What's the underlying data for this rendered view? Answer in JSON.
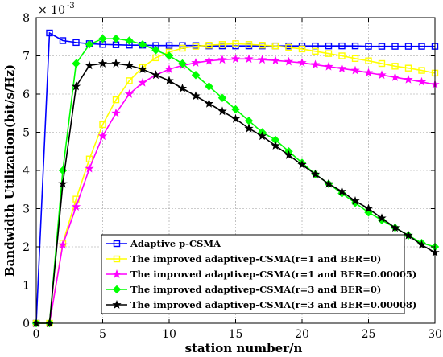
{
  "chart_data": {
    "type": "line",
    "title": "",
    "xlabel": "station number/n",
    "ylabel": "Bandwidth Utilization(bit/s/Hz)",
    "y_scale_base": "× 10",
    "y_scale_exponent": "-3",
    "xlim": [
      0,
      30
    ],
    "ylim": [
      0,
      8
    ],
    "xticks": [
      0,
      5,
      10,
      15,
      20,
      25,
      30
    ],
    "yticks": [
      0,
      1,
      2,
      3,
      4,
      5,
      6,
      7,
      8
    ],
    "grid": true,
    "legend_position": "lower-left",
    "x": [
      0,
      1,
      2,
      3,
      4,
      5,
      6,
      7,
      8,
      9,
      10,
      11,
      12,
      13,
      14,
      15,
      16,
      17,
      18,
      19,
      20,
      21,
      22,
      23,
      24,
      25,
      26,
      27,
      28,
      29,
      30
    ],
    "series": [
      {
        "name": "Adaptive p-CSMA",
        "color": "#0000ff",
        "marker": "square",
        "values": [
          0,
          7.6,
          7.4,
          7.35,
          7.32,
          7.3,
          7.29,
          7.28,
          7.28,
          7.27,
          7.27,
          7.27,
          7.27,
          7.26,
          7.26,
          7.26,
          7.26,
          7.26,
          7.26,
          7.26,
          7.26,
          7.26,
          7.26,
          7.26,
          7.26,
          7.25,
          7.25,
          7.25,
          7.25,
          7.25,
          7.25
        ]
      },
      {
        "name": "The improved adaptivep-CSMA(r=1 and BER=0)",
        "color": "#ffff00",
        "marker": "square",
        "values": [
          0,
          0,
          2.1,
          3.25,
          4.3,
          5.2,
          5.85,
          6.35,
          6.7,
          6.95,
          7.1,
          7.2,
          7.25,
          7.28,
          7.3,
          7.32,
          7.3,
          7.28,
          7.26,
          7.22,
          7.18,
          7.12,
          7.06,
          7.0,
          6.93,
          6.87,
          6.8,
          6.73,
          6.68,
          6.62,
          6.55
        ]
      },
      {
        "name": "The improved adaptivep-CSMA(r=1 and BER=0.00005)",
        "color": "#ff00ff",
        "marker": "star",
        "values": [
          0,
          0,
          2.05,
          3.05,
          4.05,
          4.9,
          5.5,
          6.0,
          6.3,
          6.5,
          6.65,
          6.75,
          6.82,
          6.87,
          6.9,
          6.92,
          6.92,
          6.9,
          6.88,
          6.85,
          6.82,
          6.77,
          6.72,
          6.67,
          6.62,
          6.56,
          6.5,
          6.44,
          6.38,
          6.32,
          6.25
        ]
      },
      {
        "name": "The improved adaptivep-CSMA(r=3 and BER=0)",
        "color": "#00ff00",
        "marker": "diamond",
        "values": [
          0,
          0,
          4.0,
          6.8,
          7.3,
          7.45,
          7.45,
          7.4,
          7.3,
          7.15,
          7.0,
          6.8,
          6.5,
          6.2,
          5.9,
          5.6,
          5.3,
          5.0,
          4.8,
          4.5,
          4.2,
          3.9,
          3.65,
          3.4,
          3.15,
          2.9,
          2.7,
          2.5,
          2.3,
          2.1,
          2.0
        ]
      },
      {
        "name": "The improved adaptivep-CSMA(r=3 and BER=0.00008)",
        "color": "#000000",
        "marker": "star",
        "values": [
          0,
          0,
          3.65,
          6.2,
          6.75,
          6.8,
          6.8,
          6.75,
          6.65,
          6.5,
          6.35,
          6.15,
          5.95,
          5.75,
          5.55,
          5.35,
          5.1,
          4.9,
          4.65,
          4.4,
          4.15,
          3.9,
          3.65,
          3.45,
          3.2,
          3.0,
          2.75,
          2.5,
          2.3,
          2.05,
          1.85
        ]
      }
    ]
  }
}
